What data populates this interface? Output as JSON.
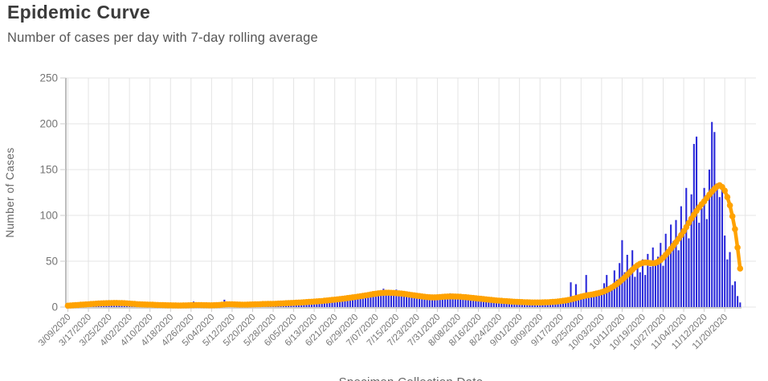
{
  "header": {
    "title": "Epidemic Curve",
    "subtitle": "Number of cases per day with 7-day rolling average"
  },
  "chart_data": {
    "type": "bar",
    "title": "Epidemic Curve",
    "subtitle": "Number of cases per day with 7-day rolling average",
    "xlabel": "Specimen Collection Date",
    "ylabel": "Number of Cases",
    "ylim": [
      0,
      250
    ],
    "y_ticks": [
      0,
      50,
      100,
      150,
      200,
      250
    ],
    "grid": true,
    "legend": "none",
    "days_per_tick": 8,
    "x_tick_labels": [
      "3/09/2020",
      "3/17/2020",
      "3/25/2020",
      "4/02/2020",
      "4/10/2020",
      "4/18/2020",
      "4/26/2020",
      "5/04/2020",
      "5/12/2020",
      "5/20/2020",
      "5/28/2020",
      "6/05/2020",
      "6/13/2020",
      "6/21/2020",
      "6/29/2020",
      "7/07/2020",
      "7/15/2020",
      "7/23/2020",
      "7/31/2020",
      "8/08/2020",
      "8/16/2020",
      "8/24/2020",
      "9/01/2020",
      "9/09/2020",
      "9/17/2020",
      "9/25/2020",
      "10/03/2020",
      "10/11/2020",
      "10/19/2020",
      "10/27/2020",
      "11/04/2020",
      "11/12/2020",
      "11/20/2020"
    ],
    "colors": {
      "bar": "#2b2ada",
      "line": "#FFA200",
      "grid": "#e4e4e4",
      "axis_line": "#999999",
      "tick_text": "#757575",
      "axis_title_text": "#666666"
    },
    "series": [
      {
        "name": "Cases per day",
        "type": "bar",
        "values": [
          1,
          2,
          1,
          3,
          2,
          3,
          2,
          3,
          4,
          3,
          4,
          3,
          5,
          4,
          3,
          4,
          5,
          4,
          6,
          4,
          5,
          3,
          4,
          4,
          3,
          4,
          3,
          2,
          3,
          2,
          3,
          2,
          2,
          3,
          1,
          2,
          2,
          1,
          2,
          2,
          1,
          2,
          1,
          2,
          1,
          2,
          1,
          2,
          2,
          6,
          1,
          2,
          2,
          1,
          2,
          1,
          2,
          1,
          3,
          2,
          2,
          8,
          2,
          2,
          3,
          2,
          2,
          3,
          2,
          3,
          2,
          3,
          3,
          4,
          2,
          3,
          4,
          3,
          3,
          4,
          3,
          4,
          5,
          3,
          4,
          4,
          5,
          4,
          5,
          4,
          5,
          6,
          4,
          5,
          6,
          5,
          6,
          5,
          7,
          6,
          8,
          6,
          7,
          8,
          7,
          9,
          8,
          10,
          9,
          11,
          9,
          12,
          10,
          13,
          11,
          14,
          12,
          15,
          13,
          16,
          14,
          17,
          15,
          20,
          16,
          18,
          15,
          17,
          19,
          14,
          16,
          13,
          15,
          12,
          14,
          13,
          12,
          14,
          10,
          12,
          9,
          11,
          10,
          9,
          11,
          13,
          10,
          14,
          12,
          15,
          11,
          13,
          14,
          11,
          12,
          10,
          13,
          9,
          11,
          10,
          9,
          11,
          8,
          10,
          7,
          9,
          8,
          7,
          8,
          7,
          9,
          6,
          8,
          5,
          7,
          6,
          6,
          7,
          5,
          6,
          4,
          6,
          5,
          4,
          5,
          4,
          6,
          5,
          7,
          5,
          6,
          7,
          6,
          8,
          7,
          9,
          27,
          10,
          25,
          12,
          9,
          14,
          35,
          11,
          16,
          12,
          18,
          14,
          16,
          26,
          35,
          18,
          24,
          40,
          30,
          48,
          73,
          38,
          57,
          42,
          62,
          33,
          46,
          38,
          52,
          35,
          58,
          44,
          65,
          48,
          55,
          70,
          45,
          80,
          60,
          90,
          72,
          95,
          62,
          110,
          85,
          130,
          75,
          123,
          178,
          186,
          92,
          108,
          130,
          96,
          150,
          202,
          191,
          135,
          120,
          133,
          78,
          52,
          60,
          24,
          28,
          12,
          5
        ]
      },
      {
        "name": "7-day rolling average",
        "type": "line_markers",
        "values": [
          1.5,
          1.7,
          1.9,
          2.1,
          2.3,
          2.5,
          2.7,
          2.9,
          3.1,
          3.3,
          3.5,
          3.7,
          3.9,
          4.0,
          4.1,
          4.2,
          4.3,
          4.4,
          4.5,
          4.5,
          4.4,
          4.3,
          4.2,
          4.0,
          3.8,
          3.6,
          3.4,
          3.2,
          3.0,
          2.9,
          2.8,
          2.7,
          2.6,
          2.5,
          2.4,
          2.3,
          2.2,
          2.1,
          2.0,
          1.9,
          1.9,
          1.8,
          1.8,
          1.7,
          1.7,
          1.8,
          1.8,
          1.9,
          2.0,
          2.1,
          2.2,
          2.2,
          2.1,
          2.0,
          2.0,
          1.9,
          1.9,
          2.0,
          2.1,
          2.3,
          2.5,
          2.8,
          3.0,
          3.1,
          3.0,
          2.9,
          2.8,
          2.7,
          2.6,
          2.6,
          2.7,
          2.8,
          2.9,
          3.0,
          3.1,
          3.2,
          3.3,
          3.3,
          3.4,
          3.4,
          3.5,
          3.6,
          3.8,
          3.9,
          4.0,
          4.2,
          4.3,
          4.5,
          4.6,
          4.7,
          4.9,
          5.0,
          5.2,
          5.4,
          5.6,
          5.8,
          6.0,
          6.2,
          6.4,
          6.6,
          6.9,
          7.2,
          7.5,
          7.8,
          8.1,
          8.4,
          8.7,
          9.0,
          9.4,
          9.8,
          10.2,
          10.6,
          11.0,
          11.4,
          11.8,
          12.2,
          12.7,
          13.2,
          13.7,
          14.2,
          14.6,
          15.0,
          15.3,
          15.5,
          15.6,
          15.6,
          15.5,
          15.4,
          15.2,
          15.0,
          14.7,
          14.4,
          14.0,
          13.6,
          13.2,
          12.8,
          12.4,
          12.0,
          11.6,
          11.2,
          10.9,
          10.7,
          10.6,
          10.6,
          10.7,
          10.9,
          11.1,
          11.3,
          11.5,
          11.6,
          11.6,
          11.5,
          11.4,
          11.2,
          11.0,
          10.8,
          10.5,
          10.2,
          9.9,
          9.6,
          9.3,
          9.0,
          8.7,
          8.4,
          8.1,
          7.8,
          7.5,
          7.2,
          7.0,
          6.8,
          6.6,
          6.4,
          6.2,
          6.0,
          5.8,
          5.6,
          5.5,
          5.4,
          5.3,
          5.2,
          5.1,
          5.0,
          5.0,
          5.0,
          5.0,
          5.1,
          5.2,
          5.3,
          5.4,
          5.6,
          5.8,
          6.1,
          6.4,
          6.8,
          7.2,
          7.7,
          8.3,
          9.0,
          9.8,
          10.6,
          11.3,
          12.0,
          12.6,
          13.1,
          13.6,
          14.1,
          14.7,
          15.4,
          16.2,
          17.2,
          18.4,
          19.8,
          21.4,
          23.2,
          25.2,
          27.4,
          29.8,
          32.4,
          35.2,
          38.0,
          40.8,
          43.4,
          45.6,
          47.2,
          48.2,
          48.6,
          48.4,
          48.0,
          47.8,
          48.2,
          49.4,
          51.4,
          54.0,
          57.0,
          60.2,
          63.6,
          67.2,
          70.8,
          74.6,
          78.6,
          82.8,
          87.2,
          91.8,
          96.4,
          100.8,
          105.0,
          108.8,
          112.2,
          115.4,
          119.0,
          122.6,
          126.0,
          129.0,
          131.5,
          133.0,
          131.0,
          127.0,
          120.0,
          111.0,
          99.0,
          85.0,
          65.0,
          42.0
        ]
      }
    ]
  }
}
